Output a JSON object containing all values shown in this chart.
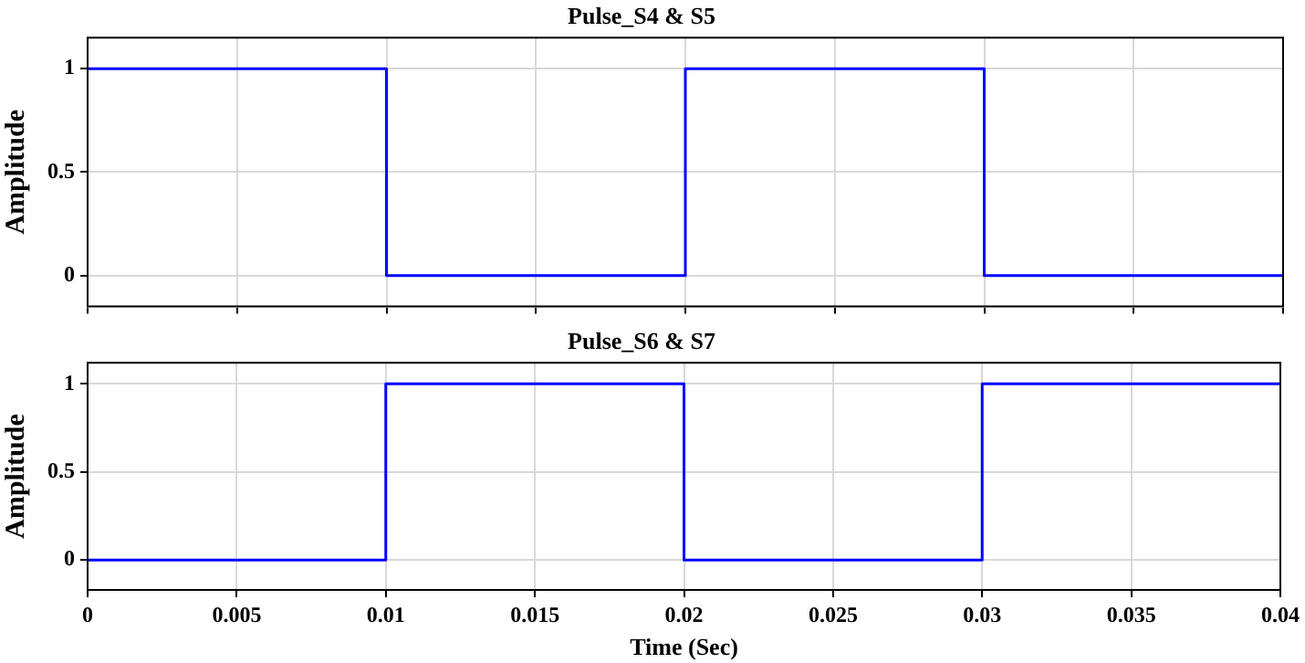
{
  "chart_data": [
    {
      "type": "step",
      "title": "Pulse_S4 & S5",
      "ylabel": "Amplitude",
      "x": [
        0,
        0.01,
        0.02,
        0.03,
        0.04
      ],
      "series": [
        {
          "color": "#0000ff",
          "values": [
            1,
            0,
            1,
            0,
            0
          ]
        }
      ],
      "xlim": [
        0,
        0.04
      ],
      "xticks": [
        0,
        0.005,
        0.01,
        0.015,
        0.02,
        0.025,
        0.03,
        0.035,
        0.04
      ],
      "ylim": [
        -0.15,
        1.15
      ],
      "yticks": [
        0,
        0.5,
        1
      ],
      "grid": true,
      "tick_labels": "y"
    },
    {
      "type": "step",
      "title": "Pulse_S6 & S7",
      "xlabel": "Time (Sec)",
      "ylabel": "Amplitude",
      "x": [
        0,
        0.01,
        0.02,
        0.03,
        0.04
      ],
      "series": [
        {
          "color": "#0000ff",
          "values": [
            0,
            1,
            0,
            1,
            1
          ]
        }
      ],
      "xlim": [
        0,
        0.04
      ],
      "xticks": [
        0,
        0.005,
        0.01,
        0.015,
        0.02,
        0.025,
        0.03,
        0.035,
        0.04
      ],
      "ylim": [
        -0.17,
        1.12
      ],
      "yticks": [
        0,
        0.5,
        1
      ],
      "grid": true
    }
  ]
}
